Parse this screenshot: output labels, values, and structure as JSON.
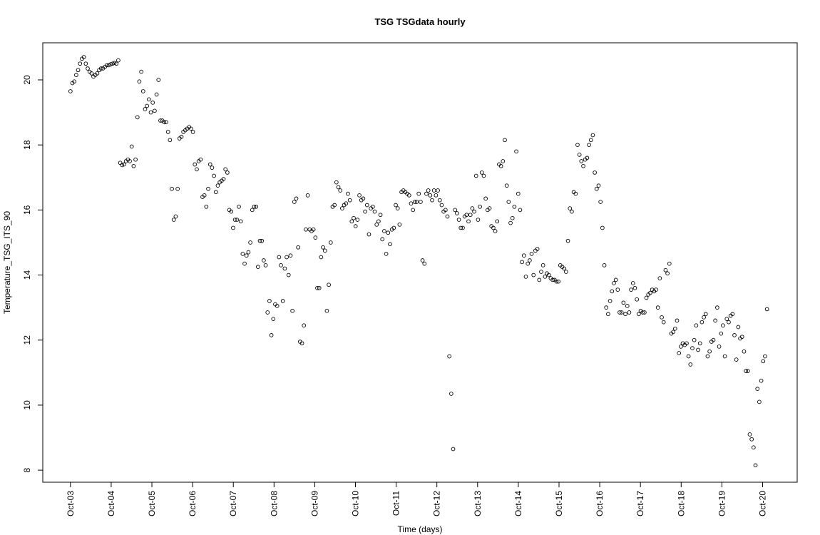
{
  "chart_data": {
    "type": "scatter",
    "title": "TSG TSGdata hourly",
    "xlabel": "Time (days)",
    "ylabel": "Temperature_TSG_ITS_90",
    "color": "#000000",
    "grid": false,
    "xlim": [
      2.32,
      20.85
    ],
    "ylim": [
      7.63,
      21.14
    ],
    "xticks": [
      {
        "value": 3,
        "label": "Oct-03"
      },
      {
        "value": 4,
        "label": "Oct-04"
      },
      {
        "value": 5,
        "label": "Oct-05"
      },
      {
        "value": 6,
        "label": "Oct-06"
      },
      {
        "value": 7,
        "label": "Oct-07"
      },
      {
        "value": 8,
        "label": "Oct-08"
      },
      {
        "value": 9,
        "label": "Oct-09"
      },
      {
        "value": 10,
        "label": "Oct-10"
      },
      {
        "value": 11,
        "label": "Oct-11"
      },
      {
        "value": 12,
        "label": "Oct-12"
      },
      {
        "value": 13,
        "label": "Oct-13"
      },
      {
        "value": 14,
        "label": "Oct-14"
      },
      {
        "value": 15,
        "label": "Oct-15"
      },
      {
        "value": 16,
        "label": "Oct-16"
      },
      {
        "value": 17,
        "label": "Oct-17"
      },
      {
        "value": 18,
        "label": "Oct-18"
      },
      {
        "value": 19,
        "label": "Oct-19"
      },
      {
        "value": 20,
        "label": "Oct-20"
      }
    ],
    "yticks": [
      8,
      10,
      12,
      14,
      16,
      18,
      20
    ],
    "x": [
      3,
      3.047,
      3.094,
      3.141,
      3.188,
      3.235,
      3.282,
      3.329,
      3.376,
      3.423,
      3.47,
      3.517,
      3.564,
      3.611,
      3.658,
      3.705,
      3.752,
      3.799,
      3.846,
      3.893,
      3.94,
      3.987,
      4.034,
      4.081,
      4.128,
      4.175,
      4.222,
      4.269,
      4.316,
      4.363,
      4.41,
      4.457,
      4.504,
      4.551,
      4.598,
      4.645,
      4.692,
      4.739,
      4.786,
      4.833,
      4.88,
      4.927,
      4.974,
      5.021,
      5.068,
      5.115,
      5.162,
      5.209,
      5.256,
      5.303,
      5.35,
      5.397,
      5.444,
      5.491,
      5.538,
      5.585,
      5.632,
      5.679,
      5.726,
      5.773,
      5.82,
      5.867,
      5.914,
      5.961,
      6.008,
      6.055,
      6.102,
      6.149,
      6.196,
      6.243,
      6.29,
      6.337,
      6.384,
      6.431,
      6.478,
      6.525,
      6.572,
      6.619,
      6.666,
      6.713,
      6.76,
      6.807,
      6.854,
      6.901,
      6.948,
      6.995,
      7.042,
      7.089,
      7.136,
      7.183,
      7.23,
      7.277,
      7.324,
      7.371,
      7.418,
      7.465,
      7.512,
      7.559,
      7.606,
      7.653,
      7.7,
      7.747,
      7.794,
      7.841,
      7.888,
      7.935,
      7.982,
      8.029,
      8.076,
      8.123,
      8.17,
      8.217,
      8.264,
      8.311,
      8.358,
      8.405,
      8.452,
      8.499,
      8.546,
      8.593,
      8.64,
      8.687,
      8.734,
      8.781,
      8.828,
      8.875,
      8.922,
      8.969,
      9.016,
      9.063,
      9.11,
      9.157,
      9.204,
      9.251,
      9.298,
      9.345,
      9.392,
      9.439,
      9.486,
      9.533,
      9.58,
      9.627,
      9.674,
      9.721,
      9.768,
      9.815,
      9.862,
      9.909,
      9.956,
      10.003,
      10.05,
      10.097,
      10.144,
      10.191,
      10.238,
      10.285,
      10.332,
      10.379,
      10.426,
      10.473,
      10.52,
      10.567,
      10.614,
      10.661,
      10.708,
      10.755,
      10.802,
      10.849,
      10.896,
      10.943,
      10.99,
      11.037,
      11.084,
      11.131,
      11.178,
      11.225,
      11.272,
      11.319,
      11.366,
      11.413,
      11.46,
      11.507,
      11.554,
      11.601,
      11.648,
      11.695,
      11.742,
      11.789,
      11.836,
      11.883,
      11.93,
      11.977,
      12.024,
      12.071,
      12.118,
      12.165,
      12.212,
      12.259,
      12.306,
      12.353,
      12.4,
      12.447,
      12.494,
      12.541,
      12.588,
      12.635,
      12.682,
      12.729,
      12.776,
      12.823,
      12.87,
      12.917,
      12.964,
      13.011,
      13.058,
      13.105,
      13.152,
      13.199,
      13.246,
      13.293,
      13.34,
      13.387,
      13.434,
      13.481,
      13.528,
      13.575,
      13.622,
      13.669,
      13.716,
      13.763,
      13.81,
      13.857,
      13.904,
      13.951,
      13.998,
      14.045,
      14.092,
      14.139,
      14.186,
      14.233,
      14.28,
      14.327,
      14.374,
      14.421,
      14.468,
      14.515,
      14.562,
      14.609,
      14.656,
      14.703,
      14.75,
      14.797,
      14.844,
      14.891,
      14.938,
      14.985,
      15.032,
      15.079,
      15.126,
      15.173,
      15.22,
      15.267,
      15.314,
      15.361,
      15.408,
      15.455,
      15.502,
      15.549,
      15.596,
      15.643,
      15.69,
      15.737,
      15.784,
      15.831,
      15.878,
      15.925,
      15.972,
      16.019,
      16.066,
      16.113,
      16.16,
      16.207,
      16.254,
      16.301,
      16.348,
      16.395,
      16.442,
      16.489,
      16.536,
      16.583,
      16.63,
      16.677,
      16.724,
      16.771,
      16.818,
      16.865,
      16.912,
      16.959,
      17.006,
      17.053,
      17.1,
      17.147,
      17.194,
      17.241,
      17.288,
      17.335,
      17.382,
      17.429,
      17.476,
      17.523,
      17.57,
      17.617,
      17.664,
      17.711,
      17.758,
      17.805,
      17.852,
      17.899,
      17.946,
      17.993,
      18.04,
      18.087,
      18.134,
      18.181,
      18.228,
      18.275,
      18.322,
      18.369,
      18.416,
      18.463,
      18.51,
      18.557,
      18.604,
      18.651,
      18.698,
      18.745,
      18.792,
      18.839,
      18.886,
      18.933,
      18.98,
      19.027,
      19.074,
      19.121,
      19.168,
      19.215,
      19.262,
      19.309,
      19.356,
      19.403,
      19.45,
      19.497,
      19.544,
      19.591,
      19.638,
      19.685,
      19.732,
      19.779,
      19.826,
      19.873,
      19.92,
      19.967,
      20.014,
      20.061,
      20.108
    ],
    "values": [
      19.65,
      19.9,
      19.95,
      20.15,
      20.3,
      20.5,
      20.65,
      20.7,
      20.5,
      20.35,
      20.25,
      20.2,
      20.1,
      20.15,
      20.2,
      20.3,
      20.35,
      20.35,
      20.4,
      20.45,
      20.45,
      20.48,
      20.5,
      20.52,
      20.5,
      20.6,
      17.45,
      17.38,
      17.4,
      17.5,
      17.55,
      17.5,
      17.95,
      17.35,
      17.55,
      18.85,
      19.95,
      20.25,
      19.65,
      19.1,
      19.2,
      19.4,
      19.0,
      19.3,
      19.05,
      19.55,
      20.0,
      18.75,
      18.75,
      18.7,
      18.7,
      18.4,
      18.15,
      16.65,
      15.7,
      15.8,
      16.65,
      18.2,
      18.25,
      18.4,
      18.45,
      18.5,
      18.55,
      18.5,
      18.4,
      17.4,
      17.25,
      17.5,
      17.55,
      16.4,
      16.45,
      16.1,
      16.65,
      17.4,
      17.3,
      17.05,
      16.55,
      16.75,
      16.85,
      16.9,
      16.95,
      17.25,
      17.15,
      16.0,
      15.95,
      15.45,
      15.7,
      15.7,
      16.1,
      15.65,
      14.65,
      14.35,
      14.6,
      14.7,
      15.0,
      16.0,
      16.1,
      16.1,
      14.25,
      15.05,
      15.05,
      14.45,
      14.3,
      12.85,
      13.2,
      12.15,
      12.65,
      13.1,
      13.05,
      14.55,
      14.3,
      13.2,
      14.2,
      14.55,
      14.0,
      14.6,
      12.9,
      16.25,
      16.35,
      14.85,
      11.95,
      11.9,
      12.45,
      15.4,
      16.45,
      15.4,
      15.35,
      15.4,
      15.15,
      13.6,
      13.6,
      14.55,
      14.85,
      14.75,
      12.9,
      13.7,
      15.0,
      16.1,
      16.15,
      16.85,
      16.7,
      16.6,
      16.05,
      16.15,
      16.2,
      16.5,
      16.3,
      15.65,
      15.75,
      15.5,
      15.7,
      16.45,
      16.3,
      16.35,
      15.95,
      16.15,
      15.25,
      16.05,
      16.1,
      15.95,
      15.55,
      15.65,
      15.85,
      15.1,
      15.35,
      14.65,
      15.3,
      14.95,
      15.4,
      15.45,
      16.15,
      16.05,
      15.55,
      16.55,
      16.6,
      16.55,
      16.5,
      16.45,
      16.2,
      16.0,
      16.25,
      16.25,
      16.5,
      16.25,
      14.45,
      14.35,
      16.5,
      16.6,
      16.45,
      16.3,
      16.6,
      16.45,
      16.6,
      16.3,
      16.15,
      15.95,
      16.0,
      15.8,
      11.5,
      10.35,
      8.65,
      16.0,
      15.9,
      15.7,
      15.45,
      15.45,
      15.8,
      15.85,
      15.65,
      15.85,
      16.05,
      15.95,
      17.05,
      15.7,
      16.1,
      17.15,
      17.05,
      16.35,
      16.0,
      16.05,
      15.5,
      15.45,
      15.35,
      15.65,
      17.4,
      17.35,
      17.5,
      18.15,
      16.75,
      16.25,
      15.6,
      15.75,
      16.1,
      17.8,
      16.5,
      16.0,
      14.4,
      14.6,
      13.95,
      14.35,
      14.45,
      14.65,
      14.0,
      14.75,
      14.8,
      13.85,
      14.1,
      14.3,
      13.95,
      14.05,
      14.0,
      13.9,
      13.85,
      13.85,
      13.8,
      13.8,
      14.3,
      14.25,
      14.2,
      14.1,
      15.05,
      16.05,
      15.95,
      16.55,
      16.5,
      18.0,
      17.7,
      17.5,
      17.35,
      17.55,
      17.6,
      18.0,
      18.15,
      18.3,
      17.15,
      16.65,
      16.75,
      16.25,
      15.45,
      14.3,
      13.0,
      12.8,
      13.2,
      13.5,
      13.75,
      13.85,
      13.55,
      12.85,
      12.85,
      13.15,
      12.8,
      13.05,
      12.85,
      13.55,
      13.75,
      13.6,
      13.25,
      12.8,
      12.9,
      12.85,
      12.85,
      13.3,
      13.4,
      13.45,
      13.55,
      13.5,
      13.55,
      13.0,
      13.9,
      12.7,
      12.55,
      14.15,
      14.05,
      14.35,
      12.2,
      12.25,
      12.35,
      12.6,
      11.6,
      11.8,
      11.9,
      11.85,
      11.9,
      11.5,
      11.25,
      11.75,
      12.0,
      12.45,
      11.7,
      11.9,
      12.55,
      12.7,
      12.8,
      11.5,
      11.65,
      11.95,
      12.0,
      12.6,
      13.0,
      11.8,
      12.2,
      12.45,
      11.5,
      12.65,
      12.55,
      12.75,
      12.8,
      12.15,
      11.4,
      12.4,
      12.05,
      12.1,
      11.65,
      11.05,
      11.05,
      9.1,
      8.95,
      8.7,
      8.15,
      10.5,
      10.1,
      10.75,
      11.35,
      11.5,
      12.95
    ]
  }
}
